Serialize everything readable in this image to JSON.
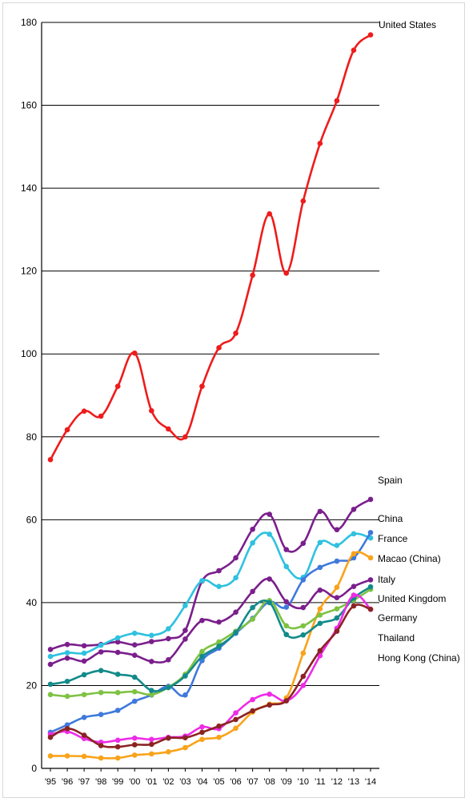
{
  "chart_data": {
    "type": "line",
    "title": "",
    "xlabel": "",
    "ylabel": "",
    "ylim": [
      0,
      180
    ],
    "yticks": [
      "0",
      "20",
      "40",
      "60",
      "80",
      "100",
      "120",
      "140",
      "160",
      "180"
    ],
    "grid": "horizontal",
    "legend": "labels at line ends, right",
    "categories": [
      "'95",
      "'96",
      "'97",
      "'98",
      "'99",
      "'00",
      "'01",
      "'02",
      "'03",
      "'04",
      "'05",
      "'06",
      "'07",
      "'08",
      "'09",
      "'10",
      "'11",
      "'12",
      "'13",
      "'14"
    ],
    "series": [
      {
        "name": "United States",
        "color": "#ee1c1c",
        "values": [
          74.5,
          81.7,
          86.2,
          85.0,
          92.2,
          100.2,
          86.3,
          81.9,
          80.0,
          92.2,
          101.5,
          105.0,
          119.0,
          133.8,
          119.5,
          136.9,
          150.8,
          161.1,
          173.3,
          177.0
        ]
      },
      {
        "name": "Spain",
        "color": "#7b1f8c",
        "values": [
          28.7,
          29.9,
          29.6,
          29.9,
          30.5,
          29.8,
          30.6,
          31.3,
          33.3,
          45.2,
          47.7,
          50.8,
          57.7,
          61.3,
          52.8,
          54.3,
          62.0,
          57.6,
          62.5,
          64.9
        ]
      },
      {
        "name": "China",
        "color": "#2fc1e0",
        "values": [
          27.0,
          27.9,
          27.8,
          29.7,
          31.5,
          32.6,
          32.1,
          33.7,
          39.3,
          45.3,
          43.9,
          46.0,
          54.4,
          56.5,
          48.7,
          46.1,
          54.5,
          53.8,
          56.6,
          55.6
        ]
      },
      {
        "name": "France",
        "color": "#3f79db",
        "values": [
          8.7,
          10.5,
          12.3,
          13.0,
          14.0,
          16.2,
          17.7,
          19.8,
          17.7,
          26.0,
          29.0,
          32.6,
          36.2,
          40.2,
          38.9,
          45.5,
          48.5,
          50.0,
          50.8,
          56.9
        ]
      },
      {
        "name": "Macao (China)",
        "color": "#f9a31a",
        "values": [
          3.0,
          3.0,
          2.9,
          2.5,
          2.5,
          3.2,
          3.5,
          4.0,
          5.0,
          7.0,
          7.5,
          9.7,
          13.6,
          15.5,
          17.0,
          27.8,
          38.5,
          43.7,
          51.8,
          50.8
        ]
      },
      {
        "name": "Italy",
        "color": "#7b1f8c",
        "values": [
          25.1,
          26.6,
          25.9,
          28.1,
          28.0,
          27.3,
          25.8,
          26.2,
          31.2,
          35.7,
          35.3,
          37.7,
          42.7,
          45.7,
          40.2,
          38.8,
          43.0,
          41.2,
          43.9,
          45.5
        ]
      },
      {
        "name": "United Kingdom",
        "color": "#7ec242",
        "values": [
          17.8,
          17.4,
          17.8,
          18.3,
          18.3,
          18.5,
          17.8,
          19.6,
          22.7,
          28.2,
          30.5,
          33.1,
          36.0,
          40.5,
          34.4,
          34.4,
          37.0,
          38.5,
          40.6,
          43.2
        ]
      },
      {
        "name": "Germany",
        "color": "#138a8a",
        "values": [
          20.3,
          21.0,
          22.6,
          23.6,
          22.7,
          22.0,
          18.8,
          19.5,
          22.3,
          27.0,
          29.5,
          32.8,
          38.8,
          40.0,
          32.3,
          32.2,
          35.0,
          36.3,
          41.1,
          43.8
        ]
      },
      {
        "name": "Thailand",
        "color": "#ee2be7",
        "values": [
          8.2,
          8.9,
          7.2,
          6.3,
          6.8,
          7.3,
          7.0,
          7.5,
          7.8,
          10.0,
          9.6,
          13.4,
          16.6,
          17.9,
          16.3,
          20.0,
          27.2,
          33.8,
          41.8,
          38.4
        ]
      },
      {
        "name": "Hong Kong (China)",
        "color": "#8b2323",
        "values": [
          7.5,
          9.6,
          8.0,
          5.5,
          5.2,
          5.7,
          5.8,
          7.3,
          7.4,
          8.7,
          10.2,
          11.8,
          13.9,
          15.3,
          16.3,
          22.2,
          28.4,
          33.1,
          39.2,
          38.4
        ]
      }
    ],
    "end_labels": [
      "United States",
      "Spain",
      "China",
      "France",
      "Macao (China)",
      "Italy",
      "United Kingdom",
      "Germany",
      "Thailand",
      "Hong Kong (China)"
    ]
  }
}
